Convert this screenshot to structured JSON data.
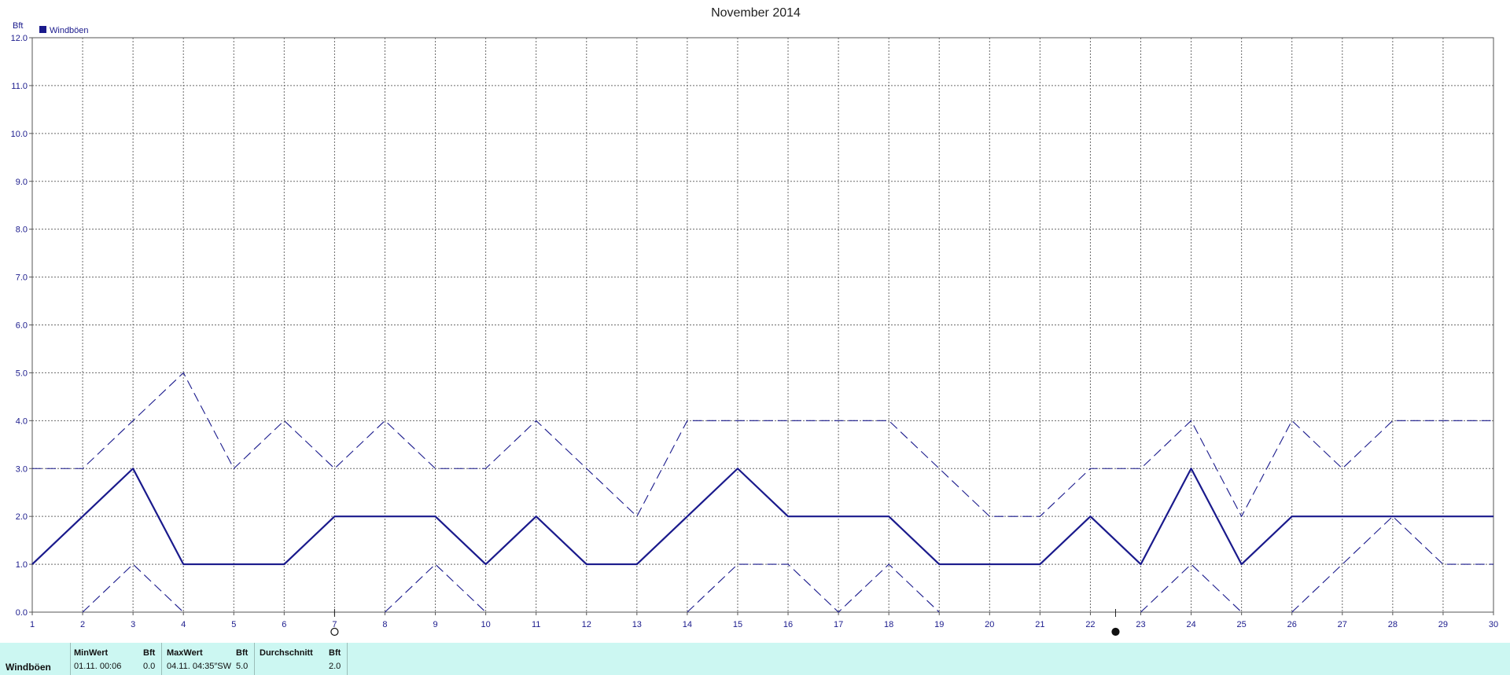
{
  "chart_data": {
    "type": "line",
    "title": "November 2014",
    "ylabel": "Bft",
    "ylim": [
      0,
      12
    ],
    "yticks": [
      "0.0",
      "1.0",
      "2.0",
      "3.0",
      "4.0",
      "5.0",
      "6.0",
      "7.0",
      "8.0",
      "9.0",
      "10.0",
      "11.0",
      "12.0"
    ],
    "x": [
      1,
      2,
      3,
      4,
      5,
      6,
      7,
      8,
      9,
      10,
      11,
      12,
      13,
      14,
      15,
      16,
      17,
      18,
      19,
      20,
      21,
      22,
      23,
      24,
      25,
      26,
      27,
      28,
      29,
      30
    ],
    "xlim": [
      1,
      30
    ],
    "grid": true,
    "legend": {
      "placement": "top-left",
      "entries": [
        "Windböen"
      ]
    },
    "series": [
      {
        "name": "Windböen",
        "style": "solid",
        "values": [
          1,
          2,
          3,
          1,
          1,
          1,
          2,
          2,
          2,
          1,
          2,
          1,
          1,
          2,
          3,
          2,
          2,
          2,
          1,
          1,
          1,
          2,
          1,
          3,
          1,
          2,
          2,
          2,
          2,
          2
        ]
      },
      {
        "style": "dashed-max",
        "values": [
          3,
          3,
          4,
          5,
          3,
          4,
          3,
          4,
          3,
          3,
          4,
          3,
          2,
          4,
          4,
          4,
          4,
          4,
          3,
          2,
          2,
          3,
          3,
          4,
          2,
          4,
          3,
          4,
          4,
          4
        ]
      },
      {
        "style": "dashed-min",
        "segments": [
          [
            [
              2,
              0
            ],
            [
              3,
              1
            ],
            [
              4,
              0
            ]
          ],
          [
            [
              8,
              0
            ],
            [
              9,
              1
            ],
            [
              10,
              0
            ]
          ],
          [
            [
              14,
              0
            ],
            [
              15,
              1
            ],
            [
              16,
              1
            ],
            [
              17,
              0
            ],
            [
              18,
              1
            ],
            [
              19,
              0
            ]
          ],
          [
            [
              23,
              0
            ],
            [
              24,
              1
            ],
            [
              25,
              0
            ]
          ],
          [
            [
              26,
              0
            ],
            [
              27,
              1
            ],
            [
              28,
              2
            ],
            [
              29,
              1
            ],
            [
              30,
              1
            ]
          ]
        ]
      }
    ],
    "moon_phases": [
      {
        "day": 7,
        "phase": "full-moon"
      },
      {
        "day": 22.5,
        "phase": "new-moon"
      }
    ]
  },
  "colors": {
    "line": "#1a1a8c",
    "grid": "#6a6a6a",
    "stats_bg": "#ccf7f2"
  },
  "stats": {
    "row_label": "Windböen",
    "min_header": "MinWert",
    "min_unit": "Bft",
    "min_time": "01.11.  00:06",
    "min_value": "0.0",
    "max_header": "MaxWert",
    "max_unit": "Bft",
    "max_time": "04.11.  04:35″SW",
    "max_value": "5.0",
    "avg_header": "Durchschnitt",
    "avg_unit": "Bft",
    "avg_value": "2.0"
  }
}
